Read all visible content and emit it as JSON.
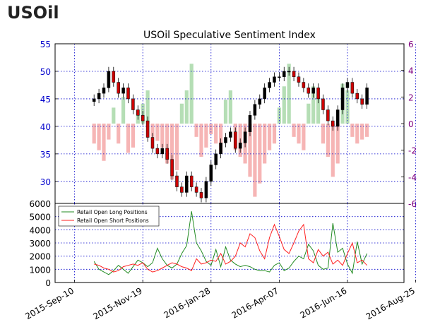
{
  "page_title": "USOil",
  "colors": {
    "price_axis": "#0000cc",
    "sentiment_axis": "#800080",
    "long_bar": "#a8d8a8",
    "short_bar": "#f4a8a8",
    "long_line": "#228b22",
    "short_line": "#ff2020",
    "candle_body": "#000000",
    "candle_down": "#cc0000",
    "grid": "#0000cc"
  },
  "chart_data": [
    {
      "type": "candlestick",
      "title": "USOil Speculative Sentiment Index",
      "price_axis": {
        "ticks": [
          30,
          35,
          40,
          45,
          50,
          55
        ],
        "ylim": [
          26,
          55
        ]
      },
      "sentiment_axis": {
        "ticks": [
          -6,
          -4,
          -2,
          0,
          2,
          4,
          6
        ],
        "ylim": [
          -6,
          6
        ]
      },
      "grid": true,
      "price_series": {
        "x_index": [
          0,
          5,
          10,
          15,
          20,
          25,
          30,
          35,
          40,
          45,
          50,
          55,
          60,
          65,
          70,
          75,
          80,
          85,
          90,
          95,
          100,
          105,
          110,
          115,
          120,
          125,
          130,
          135,
          140,
          145,
          150,
          155,
          160,
          165,
          170,
          175,
          180,
          185,
          190,
          195,
          200,
          205,
          210,
          215,
          220,
          225,
          230,
          235,
          240,
          245,
          250,
          255,
          260,
          265,
          270,
          275,
          280
        ],
        "close": [
          45,
          46,
          47,
          50,
          48,
          46,
          47,
          45,
          43,
          42,
          41,
          38,
          36,
          35,
          36,
          34,
          31,
          29,
          28,
          31,
          29,
          28,
          27,
          30,
          33,
          35,
          37,
          38,
          39,
          36,
          37,
          39,
          42,
          44,
          45,
          47,
          48,
          49,
          49,
          50,
          50,
          49,
          48,
          47,
          46,
          47,
          45,
          43,
          41,
          40,
          43,
          47,
          48,
          46,
          45,
          44,
          47
        ]
      },
      "sentiment_bars": {
        "x_index": [
          0,
          5,
          10,
          15,
          20,
          25,
          30,
          35,
          40,
          45,
          50,
          55,
          60,
          65,
          70,
          75,
          80,
          85,
          90,
          95,
          100,
          105,
          110,
          115,
          120,
          125,
          130,
          135,
          140,
          145,
          150,
          155,
          160,
          165,
          170,
          175,
          180,
          185,
          190,
          195,
          200,
          205,
          210,
          215,
          220,
          225,
          230,
          235,
          240,
          245,
          250,
          255,
          260,
          265,
          270,
          275,
          280
        ],
        "values": [
          -1.5,
          -2.0,
          -2.8,
          -1.2,
          1.2,
          -1.5,
          2.0,
          -2.2,
          -1.8,
          1.0,
          1.5,
          2.5,
          -1.0,
          -1.3,
          -1.8,
          -3.0,
          -4.2,
          -3.5,
          1.5,
          2.5,
          4.5,
          -1.0,
          -2.5,
          -1.8,
          -0.8,
          -1.5,
          -2.2,
          1.8,
          2.5,
          -2.0,
          -2.5,
          -3.0,
          -4.0,
          -5.5,
          -4.5,
          -3.0,
          -2.0,
          -1.5,
          1.2,
          2.8,
          4.5,
          -1.0,
          -1.5,
          -2.0,
          1.5,
          2.8,
          2.0,
          -1.5,
          -2.5,
          -4.0,
          -3.0,
          3.0,
          2.5,
          -1.0,
          -1.5,
          -1.2,
          -1.0
        ]
      },
      "x_ticks": [
        "2015-Sep-10",
        "2015-Nov-19",
        "2016-Jan-28",
        "2016-Apr-07",
        "2016-Jun-16",
        "2016-Aug-25"
      ]
    },
    {
      "type": "line",
      "ylim": [
        0,
        6000
      ],
      "y_ticks": [
        0,
        1000,
        2000,
        3000,
        4000,
        5000,
        6000
      ],
      "grid": true,
      "legend_location": "upper-left",
      "x_index": [
        0,
        5,
        10,
        15,
        20,
        25,
        30,
        35,
        40,
        45,
        50,
        55,
        60,
        65,
        70,
        75,
        80,
        85,
        90,
        95,
        100,
        105,
        110,
        115,
        120,
        125,
        130,
        135,
        140,
        145,
        150,
        155,
        160,
        165,
        170,
        175,
        180,
        185,
        190,
        195,
        200,
        205,
        210,
        215,
        220,
        225,
        230,
        235,
        240,
        245,
        250,
        255,
        260,
        265,
        270,
        275,
        280
      ],
      "series": [
        {
          "name": "Retail Open Long Positions",
          "values": [
            1600,
            1000,
            800,
            600,
            900,
            1300,
            1000,
            700,
            1200,
            1700,
            1500,
            1200,
            1500,
            2600,
            1800,
            1300,
            1100,
            1400,
            2200,
            2800,
            5400,
            3000,
            2400,
            1600,
            1300,
            2500,
            1200,
            2700,
            1700,
            1400,
            1200,
            1300,
            1200,
            1000,
            900,
            900,
            800,
            1300,
            1500,
            900,
            1100,
            1600,
            2000,
            1800,
            2900,
            2400,
            1300,
            1000,
            1100,
            4500,
            2300,
            2600,
            1400,
            700,
            3100,
            1400,
            2200
          ]
        },
        {
          "name": "Retail Open Short Positions",
          "values": [
            1400,
            1300,
            1100,
            1000,
            800,
            900,
            1200,
            1300,
            1400,
            1300,
            1500,
            1000,
            800,
            900,
            1100,
            1300,
            1500,
            1400,
            1200,
            1100,
            900,
            1800,
            1400,
            1500,
            1700,
            1600,
            2200,
            1400,
            1600,
            2000,
            3000,
            2700,
            3700,
            3400,
            2400,
            1800,
            3400,
            4400,
            3500,
            2500,
            2200,
            3000,
            3900,
            4400,
            1800,
            1500,
            2500,
            2000,
            2300,
            1400,
            1700,
            1300,
            2200,
            3000,
            1500,
            1700,
            1300
          ]
        }
      ],
      "x_ticks": [
        "2015-Sep-10",
        "2015-Nov-19",
        "2016-Jan-28",
        "2016-Apr-07",
        "2016-Jun-16",
        "2016-Aug-25"
      ]
    }
  ]
}
